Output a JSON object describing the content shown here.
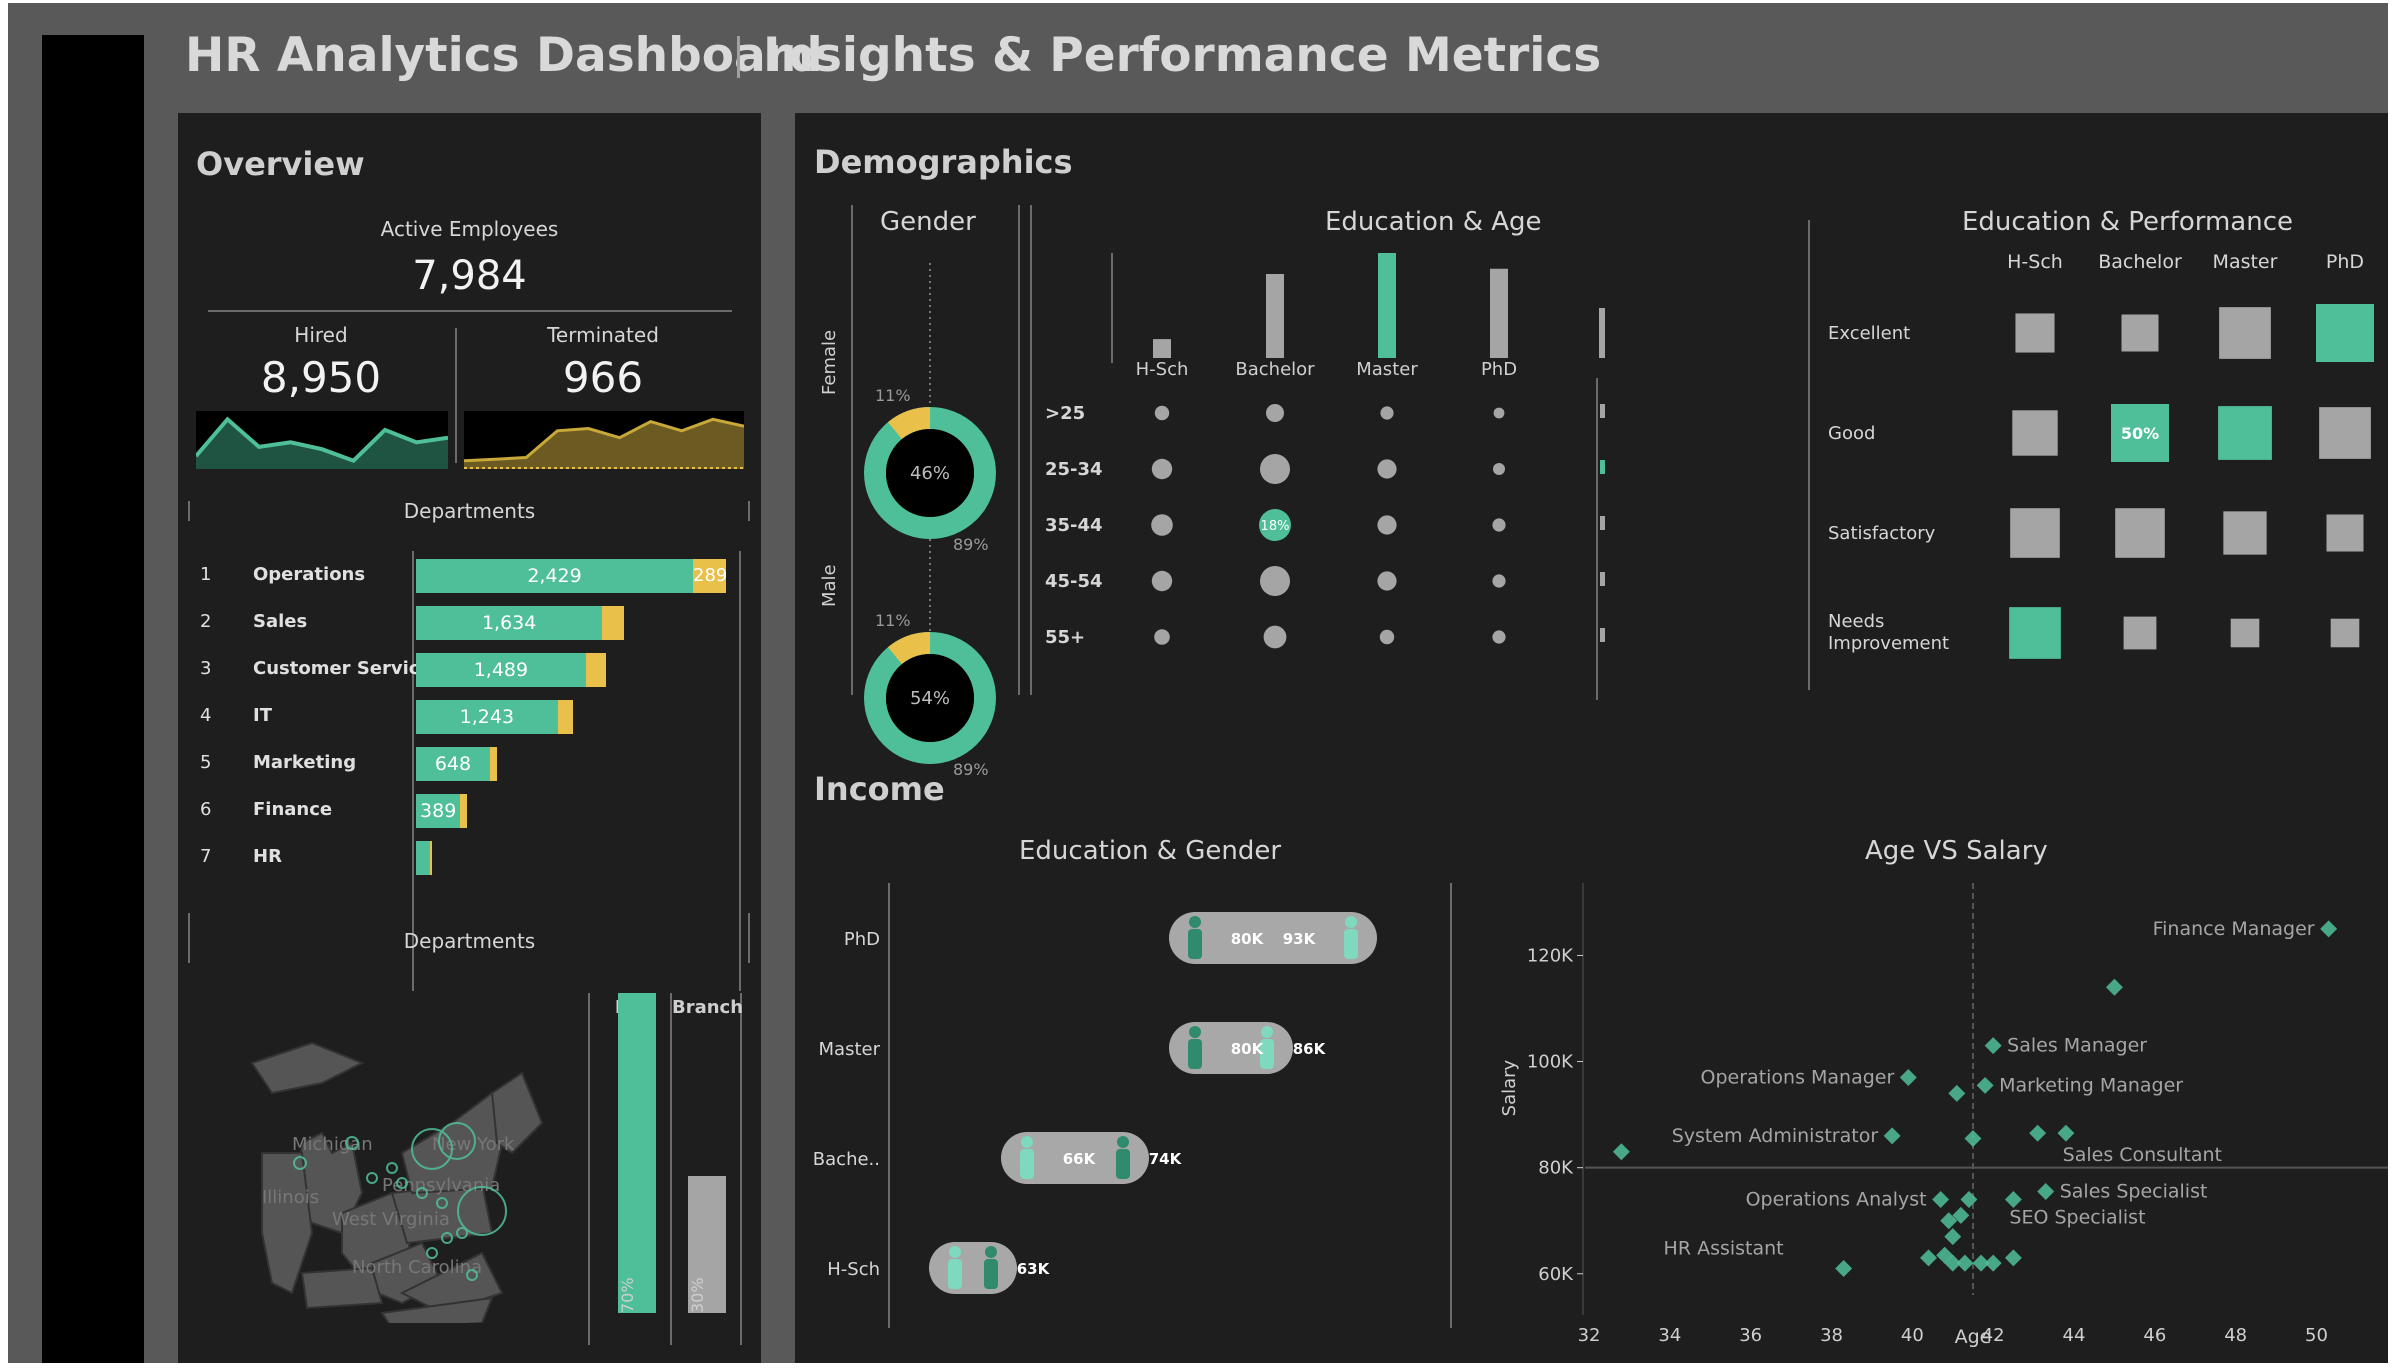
{
  "header": {
    "title": "HR Analytics Dashboard",
    "subtitle": "Insights & Performance Metrics"
  },
  "colors": {
    "accent": "#4fbf99",
    "terminated": "#e8c04a",
    "grey": "#a5a5a5",
    "panel": "#1e1e1e",
    "frame": "#595959"
  },
  "overview": {
    "title": "Overview",
    "active_label": "Active Employees",
    "active_value": "7,984",
    "hired_label": "Hired",
    "hired_value": "8,950",
    "terminated_label": "Terminated",
    "terminated_value": "966",
    "hired_trend": [
      0.15,
      0.95,
      0.35,
      0.45,
      0.3,
      0.05,
      0.72,
      0.45,
      0.55
    ],
    "terminated_trend": [
      0.05,
      0.08,
      0.12,
      0.7,
      0.75,
      0.55,
      0.9,
      0.7,
      0.95,
      0.8
    ]
  },
  "departments": {
    "title": "Departments",
    "rows": [
      {
        "rank": "1",
        "name": "Operations",
        "active": 2429,
        "active_label": "2,429",
        "terminated": 289,
        "terminated_label": "289"
      },
      {
        "rank": "2",
        "name": "Sales",
        "active": 1634,
        "active_label": "1,634",
        "terminated": 190,
        "terminated_label": ""
      },
      {
        "rank": "3",
        "name": "Customer Service",
        "active": 1489,
        "active_label": "1,489",
        "terminated": 180,
        "terminated_label": ""
      },
      {
        "rank": "4",
        "name": "IT",
        "active": 1243,
        "active_label": "1,243",
        "terminated": 130,
        "terminated_label": ""
      },
      {
        "rank": "5",
        "name": "Marketing",
        "active": 648,
        "active_label": "648",
        "terminated": 60,
        "terminated_label": ""
      },
      {
        "rank": "6",
        "name": "Finance",
        "active": 389,
        "active_label": "389",
        "terminated": 55,
        "terminated_label": ""
      },
      {
        "rank": "7",
        "name": "HR",
        "active": 120,
        "active_label": "",
        "terminated": 20,
        "terminated_label": ""
      }
    ]
  },
  "locations": {
    "title": "Departments",
    "hq_label": "HQ",
    "branch_label": "Branch",
    "hq_pct": 70,
    "hq_pct_label": "70%",
    "branch_pct": 30,
    "branch_pct_label": "30%",
    "states": [
      "Michigan",
      "New York",
      "Pennsylvania",
      "Illinois",
      "West Virginia",
      "North Carolina"
    ]
  },
  "demographics": {
    "title": "Demographics",
    "gender": {
      "title": "Gender",
      "female_label": "Female",
      "female_pct": 46,
      "female_pct_label": "46%",
      "male_label": "Male",
      "male_pct": 54,
      "male_pct_label": "54%",
      "terminated_label": "11%",
      "active_label": "89%",
      "terminated_frac": 0.11
    },
    "edu_age": {
      "title": "Education & Age",
      "educations": [
        "H-Sch",
        "Bachelor",
        "Master",
        "PhD"
      ],
      "edu_totals": [
        0.18,
        0.8,
        1.0,
        0.85
      ],
      "edu_highlight": 2,
      "ages": [
        ">25",
        "25-34",
        "35-44",
        "45-54",
        "55+"
      ],
      "age_totals": [
        0.34,
        1.0,
        0.22,
        0.45,
        0.08
      ],
      "age_highlight": 1,
      "bubbles": [
        [
          0.35,
          0.5,
          0.3,
          0.2
        ],
        [
          0.6,
          1.0,
          0.55,
          0.25
        ],
        [
          0.65,
          1.0,
          0.55,
          0.3
        ],
        [
          0.6,
          1.0,
          0.55,
          0.3
        ],
        [
          0.4,
          0.7,
          0.35,
          0.3
        ]
      ],
      "highlight_cell": [
        2,
        1
      ],
      "highlight_label": "18%"
    },
    "edu_perf": {
      "title": "Education & Performance",
      "columns": [
        "H-Sch",
        "Bachelor",
        "Master",
        "PhD"
      ],
      "rows": [
        "Excellent",
        "Good",
        "Satisfactory",
        "Needs Improvement"
      ],
      "sizes": [
        [
          0.55,
          0.5,
          0.85,
          1.0
        ],
        [
          0.7,
          1.0,
          0.9,
          0.85
        ],
        [
          0.8,
          0.8,
          0.65,
          0.5
        ],
        [
          0.85,
          0.4,
          0.3,
          0.3
        ]
      ],
      "highlights": [
        [
          0,
          3
        ],
        [
          1,
          1
        ],
        [
          1,
          2
        ],
        [
          3,
          0
        ]
      ],
      "label_cell": [
        1,
        1
      ],
      "label": "50%"
    }
  },
  "income": {
    "title": "Income",
    "edu_gender": {
      "title": "Education & Gender",
      "rows": [
        {
          "name": "PhD",
          "male": 80,
          "male_label": "80K",
          "female": 93,
          "female_label": "93K"
        },
        {
          "name": "Master",
          "male": 80,
          "male_label": "80K",
          "female": 86,
          "female_label": "86K"
        },
        {
          "name": "Bache..",
          "male": 74,
          "male_label": "74K",
          "female": 66,
          "female_label": "66K"
        },
        {
          "name": "H-Sch",
          "male": 63,
          "male_label": "63K",
          "female": 60,
          "female_label": ""
        }
      ],
      "xmin": 55,
      "xmax": 100
    },
    "age_salary": {
      "title": "Age VS Salary",
      "xlabel": "Age",
      "ylabel": "Salary",
      "xticks": [
        32,
        34,
        36,
        38,
        40,
        42,
        44,
        46,
        48,
        50
      ],
      "yticks": [
        60,
        80,
        100,
        120
      ],
      "ytick_labels": [
        "60K",
        "80K",
        "100K",
        "120K"
      ],
      "xlim": [
        31.9,
        51.2
      ],
      "ylim": [
        56,
        128
      ],
      "ref_x": 41.5,
      "ref_y": 80,
      "points": [
        {
          "age": 50.3,
          "salary": 125,
          "label": "Finance Manager"
        },
        {
          "age": 45,
          "salary": 114,
          "label": ""
        },
        {
          "age": 42,
          "salary": 103,
          "label": "Sales Manager"
        },
        {
          "age": 39.9,
          "salary": 97,
          "label": "Operations Manager"
        },
        {
          "age": 41.8,
          "salary": 95.5,
          "label": "Marketing Manager"
        },
        {
          "age": 41.1,
          "salary": 94,
          "label": ""
        },
        {
          "age": 39.5,
          "salary": 86,
          "label": "System Administrator"
        },
        {
          "age": 41.5,
          "salary": 85.5,
          "label": ""
        },
        {
          "age": 43.1,
          "salary": 86.5,
          "label": "Sales Consultant"
        },
        {
          "age": 43.8,
          "salary": 86.5,
          "label": ""
        },
        {
          "age": 32.8,
          "salary": 83,
          "label": ""
        },
        {
          "age": 40.7,
          "salary": 74,
          "label": "Operations Analyst"
        },
        {
          "age": 41.4,
          "salary": 74,
          "label": ""
        },
        {
          "age": 43.3,
          "salary": 75.5,
          "label": "Sales Specialist"
        },
        {
          "age": 42.5,
          "salary": 74,
          "label": "SEO Specialist"
        },
        {
          "age": 41.2,
          "salary": 71,
          "label": ""
        },
        {
          "age": 40.9,
          "salary": 70,
          "label": ""
        },
        {
          "age": 41.0,
          "salary": 67,
          "label": ""
        },
        {
          "age": 40.4,
          "salary": 63,
          "label": ""
        },
        {
          "age": 40.8,
          "salary": 63.5,
          "label": ""
        },
        {
          "age": 41.0,
          "salary": 62,
          "label": ""
        },
        {
          "age": 41.3,
          "salary": 62,
          "label": ""
        },
        {
          "age": 41.7,
          "salary": 62,
          "label": ""
        },
        {
          "age": 42.0,
          "salary": 62,
          "label": ""
        },
        {
          "age": 42.5,
          "salary": 63,
          "label": ""
        },
        {
          "age": 38.3,
          "salary": 61,
          "label": "HR Assistant"
        }
      ]
    }
  }
}
